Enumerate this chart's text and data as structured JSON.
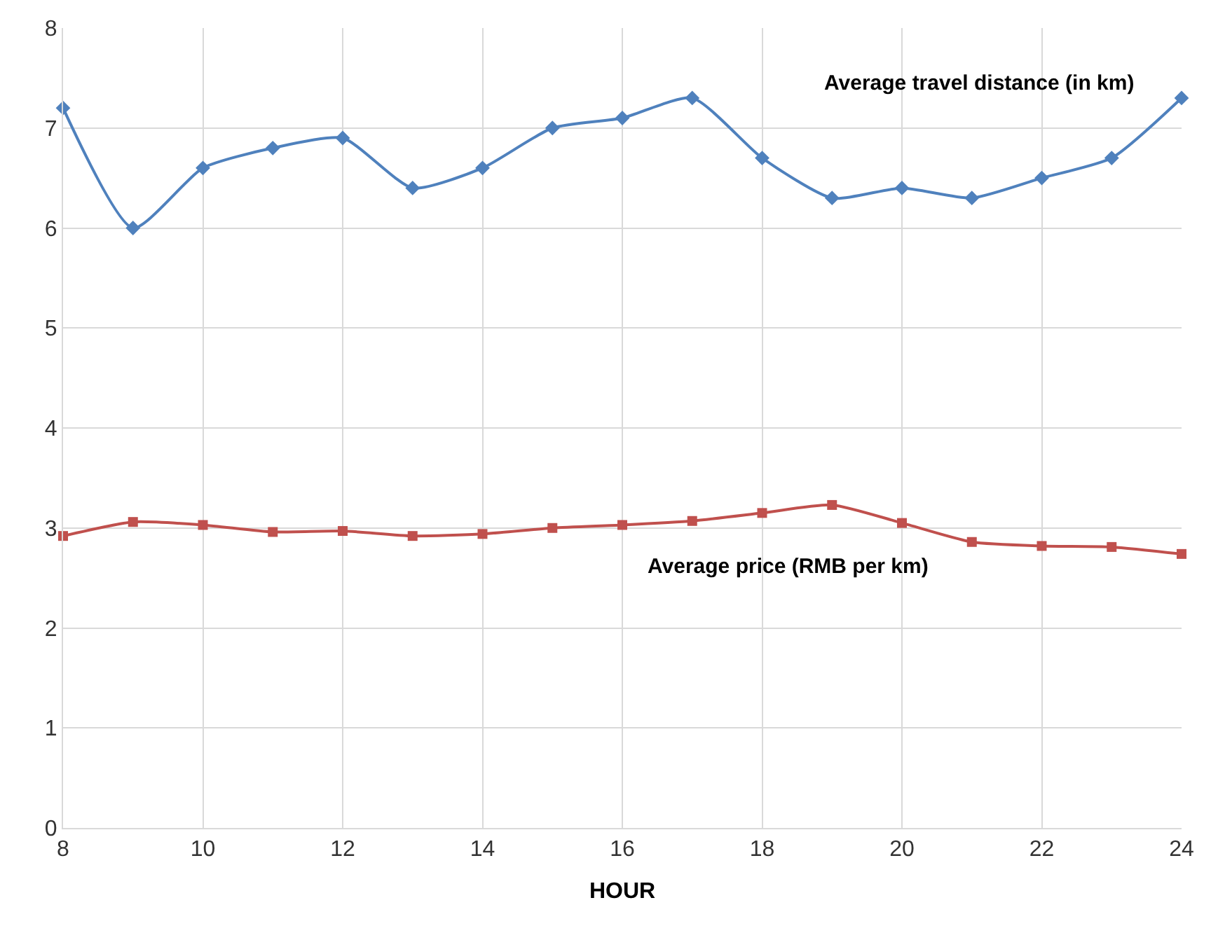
{
  "chart_data": {
    "type": "line",
    "xlabel": "HOUR",
    "x": [
      8,
      9,
      10,
      11,
      12,
      13,
      14,
      15,
      16,
      17,
      18,
      19,
      20,
      21,
      22,
      23,
      24
    ],
    "series": [
      {
        "name": "Average travel distance (in km)",
        "color": "#4f81bd",
        "marker": "diamond",
        "values": [
          7.2,
          6.0,
          6.6,
          6.8,
          6.9,
          6.4,
          6.6,
          7.0,
          7.1,
          7.3,
          6.7,
          6.3,
          6.4,
          6.3,
          6.5,
          6.7,
          7.3
        ]
      },
      {
        "name": "Average price (RMB per km)",
        "color": "#c0504d",
        "marker": "square",
        "values": [
          2.92,
          3.06,
          3.03,
          2.96,
          2.97,
          2.92,
          2.94,
          3.0,
          3.03,
          3.07,
          3.15,
          3.23,
          3.05,
          2.86,
          2.82,
          2.81,
          2.74
        ]
      }
    ],
    "xlim": [
      8,
      24
    ],
    "xticks": [
      8,
      10,
      12,
      14,
      16,
      18,
      20,
      22,
      24
    ],
    "ylim": [
      0,
      8
    ],
    "yticks": [
      0,
      1,
      2,
      3,
      4,
      5,
      6,
      7,
      8
    ],
    "grid": true,
    "legend": false,
    "line_style": "solid"
  }
}
